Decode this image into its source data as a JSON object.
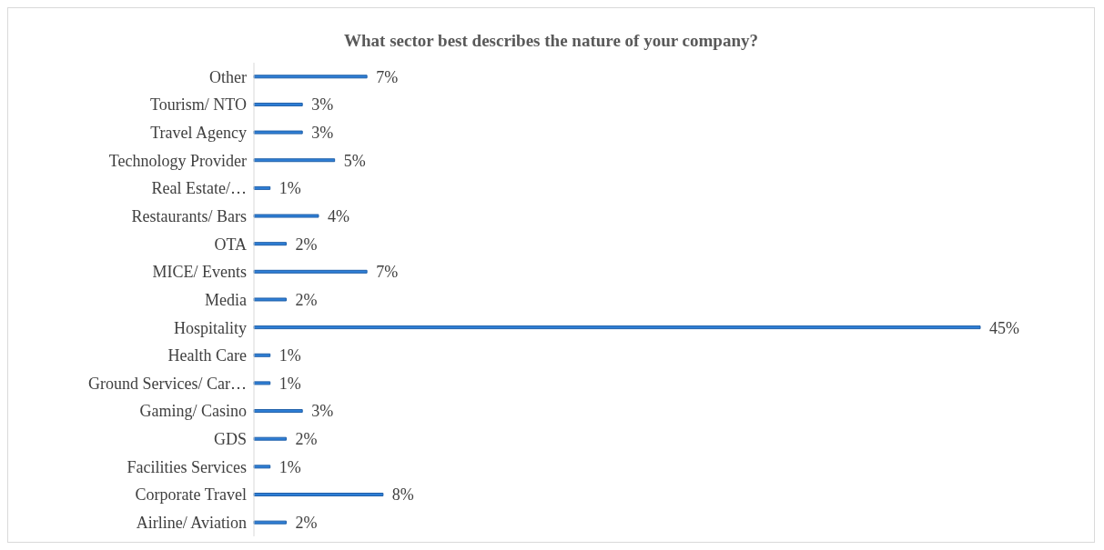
{
  "chart_data": {
    "type": "bar",
    "orientation": "horizontal",
    "title": "What sector best describes the nature of your company?",
    "categories": [
      "Other",
      "Tourism/ NTO",
      "Travel Agency",
      "Technology Provider",
      "Real Estate/…",
      "Restaurants/ Bars",
      "OTA",
      "MICE/ Events",
      "Media",
      "Hospitality",
      "Health Care",
      "Ground Services/ Car…",
      "Gaming/ Casino",
      "GDS",
      "Facilities Services",
      "Corporate Travel",
      "Airline/ Aviation"
    ],
    "values": [
      7,
      3,
      3,
      5,
      1,
      4,
      2,
      7,
      2,
      45,
      1,
      1,
      3,
      2,
      1,
      8,
      2
    ],
    "value_labels": [
      "7%",
      "3%",
      "3%",
      "5%",
      "1%",
      "4%",
      "2%",
      "7%",
      "2%",
      "45%",
      "1%",
      "1%",
      "3%",
      "2%",
      "1%",
      "8%",
      "2%"
    ],
    "color": "#2f7fd6",
    "tick_labels": "y"
  }
}
